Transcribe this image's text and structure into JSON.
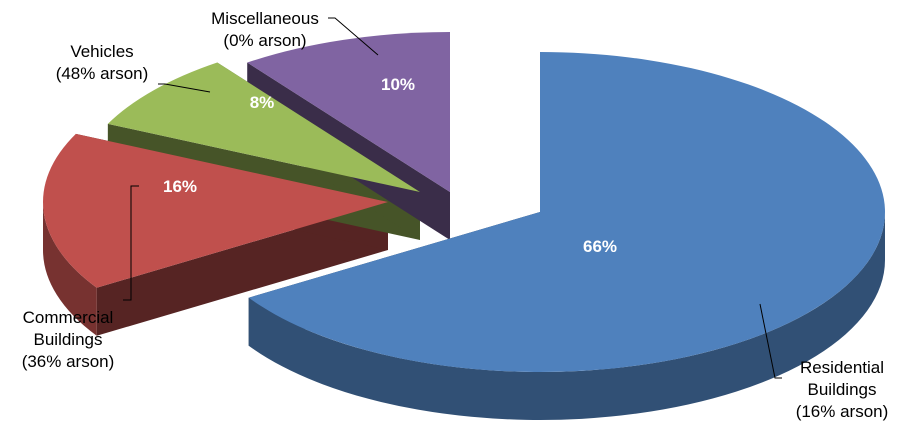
{
  "chart_data": {
    "type": "pie",
    "style": "3d-exploded",
    "slices": [
      {
        "key": "residential",
        "label_lines": [
          "Residential",
          "Buildings",
          "(16% arson)"
        ],
        "value": 66,
        "value_label": "66%",
        "color": "#4f81bd"
      },
      {
        "key": "commercial",
        "label_lines": [
          "Commercial",
          "Buildings",
          "(36% arson)"
        ],
        "value": 16,
        "value_label": "16%",
        "color": "#c0504d"
      },
      {
        "key": "vehicles",
        "label_lines": [
          "Vehicles",
          "(48% arson)"
        ],
        "value": 8,
        "value_label": "8%",
        "color": "#9bbb59"
      },
      {
        "key": "miscellaneous",
        "label_lines": [
          "Miscellaneous",
          "(0% arson)"
        ],
        "value": 10,
        "value_label": "10%",
        "color": "#8064a2"
      }
    ]
  }
}
